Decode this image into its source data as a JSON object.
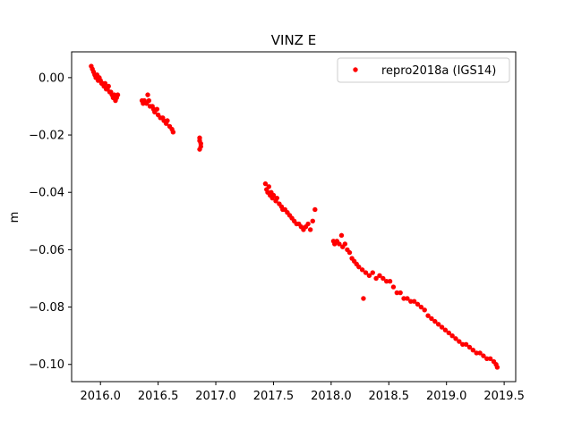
{
  "chart_data": {
    "type": "scatter",
    "title": "VINZ E",
    "xlabel": "",
    "ylabel": "m",
    "xlim": [
      2015.75,
      2019.6
    ],
    "ylim": [
      -0.106,
      0.009
    ],
    "xticks": [
      2016.0,
      2016.5,
      2017.0,
      2017.5,
      2018.0,
      2018.5,
      2019.0,
      2019.5
    ],
    "xtick_labels": [
      "2016.0",
      "2016.5",
      "2017.0",
      "2017.5",
      "2018.0",
      "2018.5",
      "2019.0",
      "2019.5"
    ],
    "yticks": [
      0.0,
      -0.02,
      -0.04,
      -0.06,
      -0.08,
      -0.1
    ],
    "ytick_labels": [
      "0.00",
      "−0.02",
      "−0.04",
      "−0.06",
      "−0.08",
      "−0.10"
    ],
    "grid": false,
    "legend_position": "top-right",
    "series": [
      {
        "name": "repro2018a (IGS14)",
        "color": "#ff0000",
        "marker": "circle",
        "points": [
          [
            2015.92,
            0.004
          ],
          [
            2015.93,
            0.003
          ],
          [
            2015.94,
            0.002
          ],
          [
            2015.95,
            0.001
          ],
          [
            2015.96,
            0.0
          ],
          [
            2015.97,
            0.001
          ],
          [
            2015.98,
            -0.001
          ],
          [
            2015.99,
            0.0
          ],
          [
            2016.0,
            -0.001
          ],
          [
            2016.01,
            -0.002
          ],
          [
            2016.02,
            -0.002
          ],
          [
            2016.03,
            -0.003
          ],
          [
            2016.04,
            -0.002
          ],
          [
            2016.05,
            -0.004
          ],
          [
            2016.06,
            -0.004
          ],
          [
            2016.07,
            -0.003
          ],
          [
            2016.08,
            -0.005
          ],
          [
            2016.09,
            -0.005
          ],
          [
            2016.1,
            -0.006
          ],
          [
            2016.11,
            -0.007
          ],
          [
            2016.12,
            -0.006
          ],
          [
            2016.13,
            -0.008
          ],
          [
            2016.14,
            -0.007
          ],
          [
            2016.15,
            -0.006
          ],
          [
            2016.36,
            -0.008
          ],
          [
            2016.37,
            -0.009
          ],
          [
            2016.38,
            -0.008
          ],
          [
            2016.4,
            -0.009
          ],
          [
            2016.41,
            -0.006
          ],
          [
            2016.42,
            -0.008
          ],
          [
            2016.43,
            -0.01
          ],
          [
            2016.45,
            -0.01
          ],
          [
            2016.46,
            -0.011
          ],
          [
            2016.47,
            -0.012
          ],
          [
            2016.49,
            -0.011
          ],
          [
            2016.5,
            -0.013
          ],
          [
            2016.52,
            -0.014
          ],
          [
            2016.54,
            -0.014
          ],
          [
            2016.55,
            -0.015
          ],
          [
            2016.57,
            -0.016
          ],
          [
            2016.58,
            -0.015
          ],
          [
            2016.6,
            -0.017
          ],
          [
            2016.62,
            -0.018
          ],
          [
            2016.63,
            -0.019
          ],
          [
            2016.86,
            -0.021
          ],
          [
            2016.86,
            -0.022
          ],
          [
            2016.87,
            -0.023
          ],
          [
            2016.87,
            -0.024
          ],
          [
            2016.86,
            -0.025
          ],
          [
            2017.43,
            -0.037
          ],
          [
            2017.44,
            -0.039
          ],
          [
            2017.45,
            -0.04
          ],
          [
            2017.46,
            -0.038
          ],
          [
            2017.47,
            -0.041
          ],
          [
            2017.48,
            -0.04
          ],
          [
            2017.49,
            -0.042
          ],
          [
            2017.5,
            -0.041
          ],
          [
            2017.52,
            -0.043
          ],
          [
            2017.53,
            -0.042
          ],
          [
            2017.55,
            -0.044
          ],
          [
            2017.57,
            -0.045
          ],
          [
            2017.58,
            -0.046
          ],
          [
            2017.6,
            -0.046
          ],
          [
            2017.62,
            -0.047
          ],
          [
            2017.64,
            -0.048
          ],
          [
            2017.66,
            -0.049
          ],
          [
            2017.68,
            -0.05
          ],
          [
            2017.7,
            -0.051
          ],
          [
            2017.72,
            -0.051
          ],
          [
            2017.74,
            -0.052
          ],
          [
            2017.76,
            -0.053
          ],
          [
            2017.78,
            -0.052
          ],
          [
            2017.8,
            -0.051
          ],
          [
            2017.82,
            -0.053
          ],
          [
            2017.84,
            -0.05
          ],
          [
            2017.86,
            -0.046
          ],
          [
            2018.02,
            -0.057
          ],
          [
            2018.03,
            -0.058
          ],
          [
            2018.05,
            -0.057
          ],
          [
            2018.07,
            -0.058
          ],
          [
            2018.09,
            -0.055
          ],
          [
            2018.1,
            -0.059
          ],
          [
            2018.12,
            -0.058
          ],
          [
            2018.14,
            -0.06
          ],
          [
            2018.16,
            -0.061
          ],
          [
            2018.18,
            -0.063
          ],
          [
            2018.2,
            -0.064
          ],
          [
            2018.22,
            -0.065
          ],
          [
            2018.24,
            -0.066
          ],
          [
            2018.27,
            -0.067
          ],
          [
            2018.28,
            -0.077
          ],
          [
            2018.3,
            -0.068
          ],
          [
            2018.33,
            -0.069
          ],
          [
            2018.36,
            -0.068
          ],
          [
            2018.39,
            -0.07
          ],
          [
            2018.42,
            -0.069
          ],
          [
            2018.45,
            -0.07
          ],
          [
            2018.48,
            -0.071
          ],
          [
            2018.51,
            -0.071
          ],
          [
            2018.54,
            -0.073
          ],
          [
            2018.57,
            -0.075
          ],
          [
            2018.6,
            -0.075
          ],
          [
            2018.63,
            -0.077
          ],
          [
            2018.66,
            -0.077
          ],
          [
            2018.69,
            -0.078
          ],
          [
            2018.72,
            -0.078
          ],
          [
            2018.75,
            -0.079
          ],
          [
            2018.78,
            -0.08
          ],
          [
            2018.81,
            -0.081
          ],
          [
            2018.84,
            -0.083
          ],
          [
            2018.87,
            -0.084
          ],
          [
            2018.9,
            -0.085
          ],
          [
            2018.93,
            -0.086
          ],
          [
            2018.96,
            -0.087
          ],
          [
            2018.99,
            -0.088
          ],
          [
            2019.02,
            -0.089
          ],
          [
            2019.05,
            -0.09
          ],
          [
            2019.08,
            -0.091
          ],
          [
            2019.11,
            -0.092
          ],
          [
            2019.14,
            -0.093
          ],
          [
            2019.17,
            -0.093
          ],
          [
            2019.2,
            -0.094
          ],
          [
            2019.23,
            -0.095
          ],
          [
            2019.26,
            -0.096
          ],
          [
            2019.29,
            -0.096
          ],
          [
            2019.32,
            -0.097
          ],
          [
            2019.35,
            -0.098
          ],
          [
            2019.38,
            -0.098
          ],
          [
            2019.41,
            -0.099
          ],
          [
            2019.43,
            -0.1
          ],
          [
            2019.44,
            -0.101
          ]
        ]
      }
    ]
  }
}
